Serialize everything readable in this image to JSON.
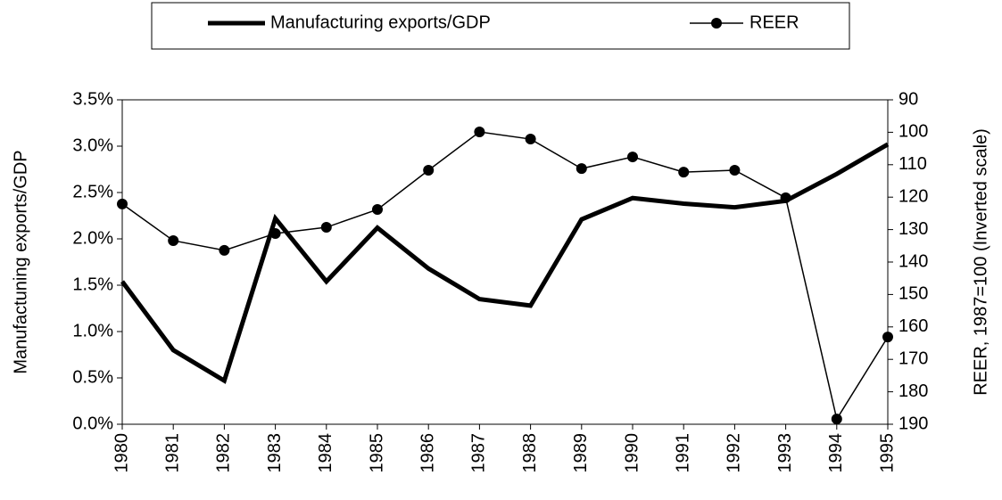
{
  "chart_data": {
    "type": "line",
    "categories": [
      "1980",
      "1981",
      "1982",
      "1983",
      "1984",
      "1985",
      "1986",
      "1987",
      "1988",
      "1989",
      "1990",
      "1991",
      "1992",
      "1993",
      "1994",
      "1995"
    ],
    "y_label": "Manufactuning exports/GDP",
    "y2_label": "REER, 1987=100 (Inverted scale)",
    "ylim": [
      0,
      3.5
    ],
    "yticks": [
      {
        "value": 0,
        "label": "0.0%"
      },
      {
        "value": 0.5,
        "label": "0.5%"
      },
      {
        "value": 1,
        "label": "1.0%"
      },
      {
        "value": 1.5,
        "label": "1.5%"
      },
      {
        "value": 2,
        "label": "2.0%"
      },
      {
        "value": 2.5,
        "label": "2.5%"
      },
      {
        "value": 3,
        "label": "3.0%"
      },
      {
        "value": 3.5,
        "label": "3.5%"
      }
    ],
    "y2lim": [
      190,
      90
    ],
    "y2ticks": [
      190,
      180,
      170,
      160,
      150,
      140,
      130,
      120,
      110,
      100,
      90
    ],
    "grid": false,
    "legend": "top",
    "series": [
      {
        "name": "Manufacturing exports/GDP",
        "color": "#000000",
        "values": [
          1.54,
          0.8,
          0.47,
          2.22,
          1.54,
          2.12,
          1.68,
          1.35,
          1.28,
          2.21,
          2.44,
          2.38,
          2.34,
          2.41,
          2.7,
          3.02
        ]
      },
      {
        "name": "REER",
        "color": "#000000",
        "axis": "y2",
        "marker": "circle",
        "values": [
          122.1,
          133.4,
          136.4,
          131.2,
          129.3,
          123.8,
          111.7,
          99.9,
          102.1,
          111.2,
          107.6,
          112.3,
          111.7,
          120.2,
          188.4,
          163.1
        ]
      }
    ]
  }
}
